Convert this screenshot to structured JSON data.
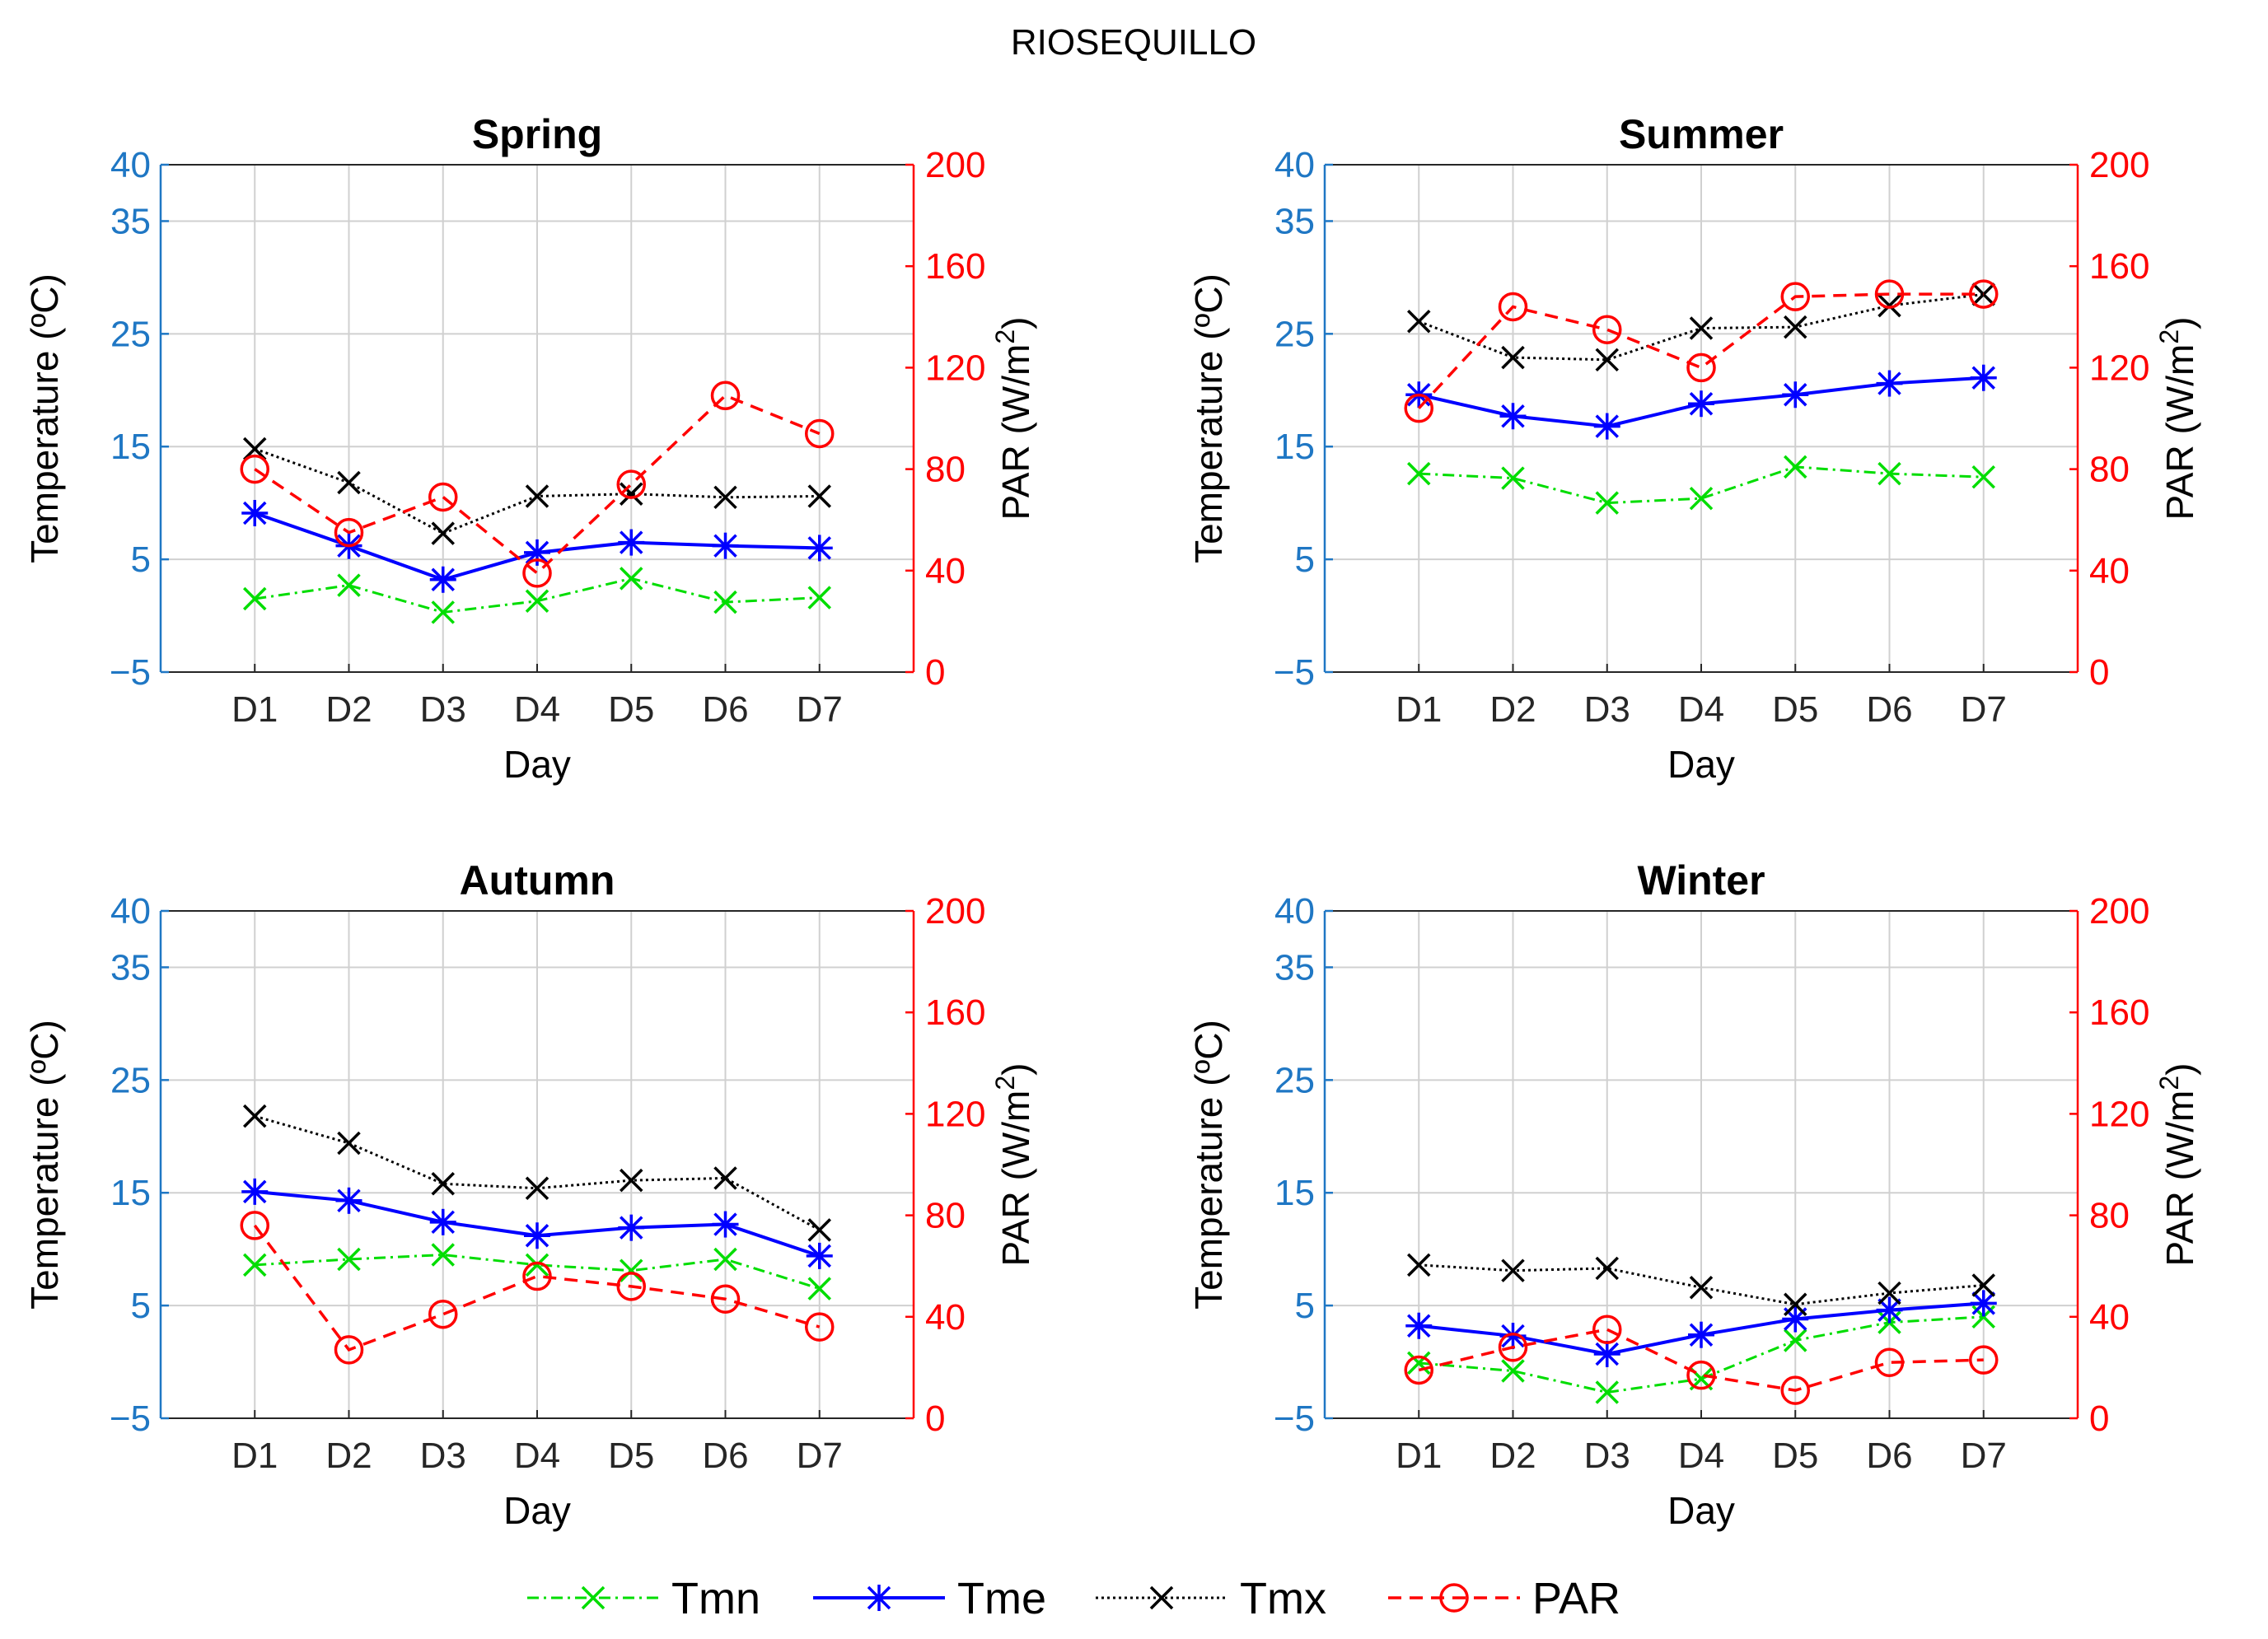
{
  "figure_title": "RIOSEQUILLO",
  "legend": {
    "tmn": "Tmn",
    "tme": "Tme",
    "tmx": "Tmx",
    "par": "PAR"
  },
  "colors": {
    "tmn": "#00dd00",
    "tme": "#0000ff",
    "tmx": "#000000",
    "par": "#ff0000",
    "left_axis": "#1f77c4",
    "right_axis": "#ff0000",
    "grid": "#d0d0d0"
  },
  "chart_data": [
    {
      "type": "line",
      "title": "Spring",
      "categories": [
        "D1",
        "D2",
        "D3",
        "D4",
        "D5",
        "D6",
        "D7"
      ],
      "xlabel": "Day",
      "ylabel": "Temperature (ºC)",
      "y2label_main": "PAR (W/m",
      "y2label_sup": "2",
      "y2label_end": ")",
      "ylim": [
        -5,
        40
      ],
      "y2lim": [
        0,
        200
      ],
      "yticks": [
        "40",
        "35",
        "25",
        "15",
        "5",
        "−5"
      ],
      "y2ticks": [
        "200",
        "160",
        "120",
        "80",
        "40",
        "0"
      ],
      "series": [
        {
          "name": "Tmn",
          "axis": "left",
          "values": [
            1.5,
            2.7,
            0.3,
            1.3,
            3.3,
            1.2,
            1.6
          ]
        },
        {
          "name": "Tme",
          "axis": "left",
          "values": [
            9.1,
            6.2,
            3.2,
            5.6,
            6.5,
            6.2,
            6.0
          ]
        },
        {
          "name": "Tmx",
          "axis": "left",
          "values": [
            14.8,
            11.8,
            7.3,
            10.6,
            10.8,
            10.5,
            10.6
          ]
        },
        {
          "name": "PAR",
          "axis": "right",
          "values": [
            80,
            55,
            69,
            39,
            74,
            109,
            94
          ]
        }
      ]
    },
    {
      "type": "line",
      "title": "Summer",
      "categories": [
        "D1",
        "D2",
        "D3",
        "D4",
        "D5",
        "D6",
        "D7"
      ],
      "xlabel": "Day",
      "ylabel": "Temperature (ºC)",
      "y2label_main": "PAR (W/m",
      "y2label_sup": "2",
      "y2label_end": ")",
      "ylim": [
        -5,
        40
      ],
      "y2lim": [
        0,
        200
      ],
      "yticks": [
        "40",
        "35",
        "25",
        "15",
        "5",
        "−5"
      ],
      "y2ticks": [
        "200",
        "160",
        "120",
        "80",
        "40",
        "0"
      ],
      "series": [
        {
          "name": "Tmn",
          "axis": "left",
          "values": [
            12.6,
            12.2,
            10.0,
            10.4,
            13.2,
            12.6,
            12.3
          ]
        },
        {
          "name": "Tme",
          "axis": "left",
          "values": [
            19.6,
            17.7,
            16.8,
            18.8,
            19.6,
            20.6,
            21.1
          ]
        },
        {
          "name": "Tmx",
          "axis": "left",
          "values": [
            26.1,
            22.9,
            22.7,
            25.5,
            25.6,
            27.5,
            28.5
          ]
        },
        {
          "name": "PAR",
          "axis": "right",
          "values": [
            104,
            144,
            135,
            120,
            148,
            149,
            149
          ]
        }
      ]
    },
    {
      "type": "line",
      "title": "Autumn",
      "categories": [
        "D1",
        "D2",
        "D3",
        "D4",
        "D5",
        "D6",
        "D7"
      ],
      "xlabel": "Day",
      "ylabel": "Temperature (ºC)",
      "y2label_main": "PAR (W/m",
      "y2label_sup": "2",
      "y2label_end": ")",
      "ylim": [
        -5,
        40
      ],
      "y2lim": [
        0,
        200
      ],
      "yticks": [
        "40",
        "35",
        "25",
        "15",
        "5",
        "−5"
      ],
      "y2ticks": [
        "200",
        "160",
        "120",
        "80",
        "40",
        "0"
      ],
      "series": [
        {
          "name": "Tmn",
          "axis": "left",
          "values": [
            8.6,
            9.1,
            9.5,
            8.6,
            8.1,
            9.1,
            6.5
          ]
        },
        {
          "name": "Tme",
          "axis": "left",
          "values": [
            15.1,
            14.3,
            12.4,
            11.2,
            11.9,
            12.2,
            9.4
          ]
        },
        {
          "name": "Tmx",
          "axis": "left",
          "values": [
            21.8,
            19.4,
            15.8,
            15.4,
            16.1,
            16.3,
            11.7
          ]
        },
        {
          "name": "PAR",
          "axis": "right",
          "values": [
            76,
            27,
            41,
            56,
            52,
            47,
            36
          ]
        }
      ]
    },
    {
      "type": "line",
      "title": "Winter",
      "categories": [
        "D1",
        "D2",
        "D3",
        "D4",
        "D5",
        "D6",
        "D7"
      ],
      "xlabel": "Day",
      "ylabel": "Temperature (ºC)",
      "y2label_main": "PAR (W/m",
      "y2label_sup": "2",
      "y2label_end": ")",
      "ylim": [
        -5,
        40
      ],
      "y2lim": [
        0,
        200
      ],
      "yticks": [
        "40",
        "35",
        "25",
        "15",
        "5",
        "−5"
      ],
      "y2ticks": [
        "200",
        "160",
        "120",
        "80",
        "40",
        "0"
      ],
      "series": [
        {
          "name": "Tmn",
          "axis": "left",
          "values": [
            -0.1,
            -0.8,
            -2.7,
            -1.5,
            1.9,
            3.5,
            4.0
          ]
        },
        {
          "name": "Tme",
          "axis": "left",
          "values": [
            3.2,
            2.3,
            0.7,
            2.4,
            3.8,
            4.6,
            5.2
          ]
        },
        {
          "name": "Tmx",
          "axis": "left",
          "values": [
            8.6,
            8.1,
            8.3,
            6.6,
            5.1,
            6.1,
            6.8
          ]
        },
        {
          "name": "PAR",
          "axis": "right",
          "values": [
            19,
            28,
            35,
            17,
            11,
            22,
            23
          ]
        }
      ]
    }
  ]
}
